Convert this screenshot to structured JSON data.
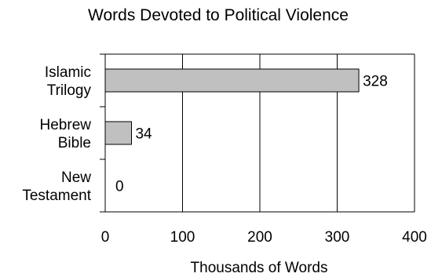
{
  "chart_data": {
    "type": "bar",
    "orientation": "horizontal",
    "title": "Words Devoted to Political Violence",
    "xlabel": "Thousands of Words",
    "ylabel": "",
    "categories": [
      [
        "Islamic",
        "Trilogy"
      ],
      [
        "Hebrew",
        "Bible"
      ],
      [
        "New",
        "Testament"
      ]
    ],
    "values": [
      328,
      34,
      0
    ],
    "data_labels": [
      "328",
      "34",
      "0"
    ],
    "xlim": [
      0,
      400
    ],
    "xticks": [
      0,
      100,
      200,
      300,
      400
    ],
    "xtick_labels": [
      "0",
      "100",
      "200",
      "300",
      "400"
    ],
    "grid": "vertical",
    "legend": "none",
    "colors": {
      "bar_fill": "#c0c0c0",
      "bar_stroke": "#000000",
      "grid": "#000000",
      "text": "#000000"
    }
  }
}
